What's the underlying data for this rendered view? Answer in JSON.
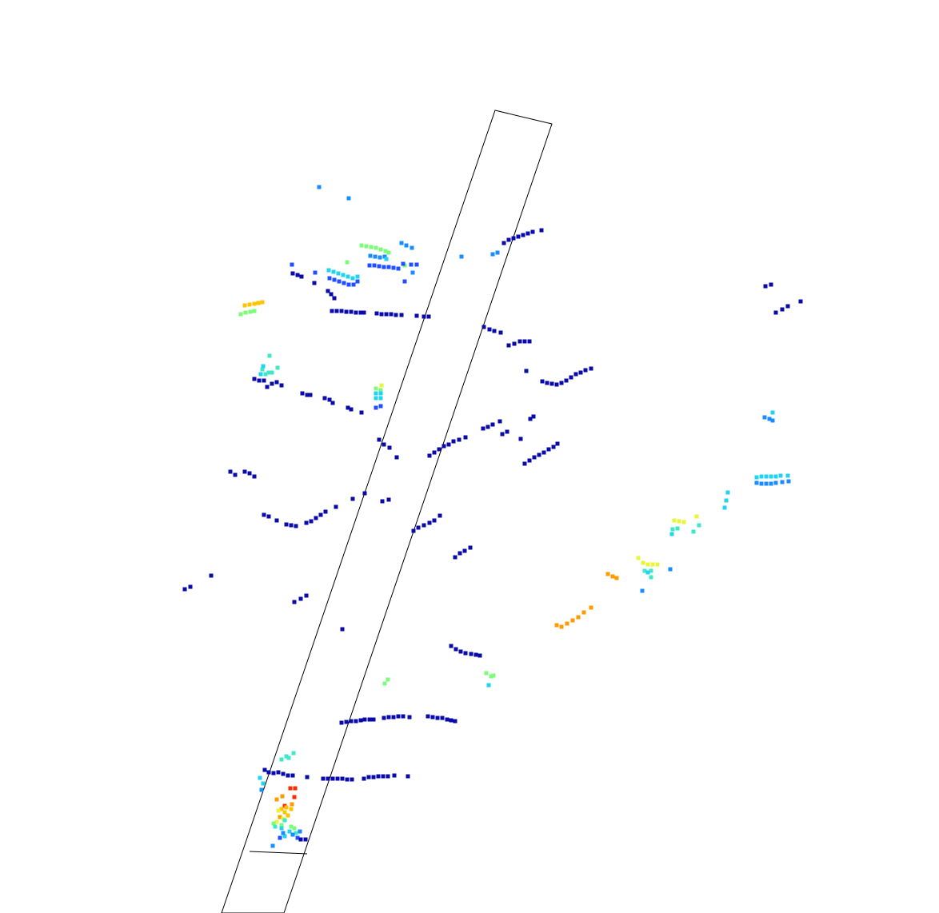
{
  "scene": {
    "type": "lidar-point-cloud-bev",
    "background": "#ffffff",
    "colormap": "jet",
    "outline_color": "#000000"
  },
  "colors": {
    "navy": "#0a0aa8",
    "blue": "#1f4fff",
    "azure": "#1a8cff",
    "cyan": "#22d3ee",
    "aqua": "#3ee8c8",
    "green": "#7dfb7a",
    "yellow": "#e8f53a",
    "gold": "#ffc400",
    "orange": "#ff9a00",
    "red": "#ff2a00"
  }
}
